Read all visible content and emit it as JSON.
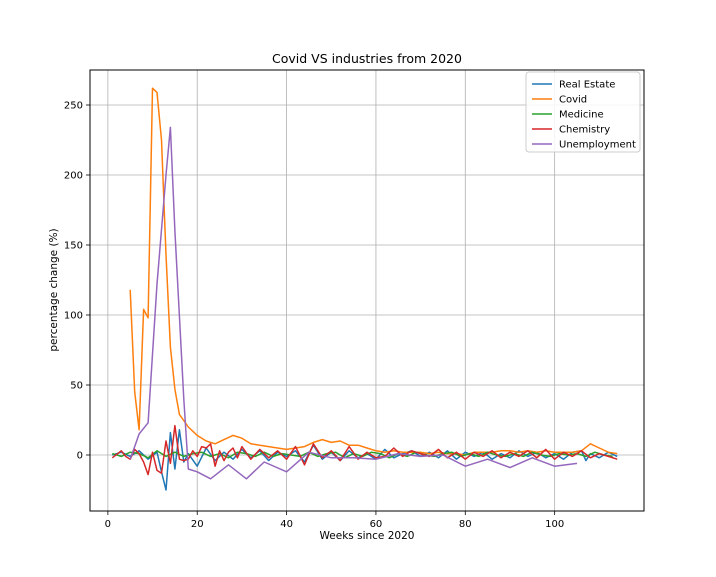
{
  "chart_data": {
    "type": "line",
    "title": "Covid VS industries from 2020",
    "xlabel": "Weeks since 2020",
    "ylabel": "percentage change (%)",
    "xlim": [
      -4,
      120
    ],
    "ylim": [
      -40,
      275
    ],
    "xticks": [
      0,
      20,
      40,
      60,
      80,
      100
    ],
    "yticks": [
      0,
      50,
      100,
      150,
      200,
      250
    ],
    "grid": true,
    "legend_position": "top-right",
    "series": [
      {
        "name": "Real Estate",
        "color": "#1f77b4",
        "x": [
          1,
          3,
          5,
          7,
          9,
          11,
          12,
          13,
          14,
          15,
          16,
          17,
          18,
          20,
          22,
          24,
          26,
          28,
          30,
          32,
          34,
          36,
          38,
          40,
          42,
          44,
          46,
          48,
          50,
          52,
          54,
          56,
          58,
          60,
          62,
          64,
          66,
          68,
          70,
          72,
          74,
          76,
          78,
          80,
          82,
          84,
          86,
          88,
          90,
          92,
          94,
          96,
          98,
          100,
          102,
          104,
          106,
          107,
          108,
          110,
          112,
          114
        ],
        "y": [
          0,
          2,
          -1,
          3,
          -3,
          2,
          -12,
          -25,
          16,
          -10,
          18,
          -5,
          1,
          -8,
          5,
          -4,
          2,
          -3,
          4,
          -2,
          3,
          -4,
          2,
          -1,
          3,
          -5,
          7,
          -3,
          2,
          -4,
          3,
          -2,
          1,
          -3,
          4,
          -2,
          1,
          3,
          -1,
          2,
          -2,
          3,
          -3,
          2,
          -1,
          2,
          -3,
          1,
          -2,
          3,
          -1,
          2,
          -2,
          1,
          -3,
          2,
          3,
          -4,
          1,
          -2,
          2,
          -1
        ]
      },
      {
        "name": "Covid",
        "color": "#ff7f0e",
        "x": [
          5,
          6,
          7,
          8,
          9,
          10,
          11,
          12,
          13,
          14,
          15,
          16,
          18,
          20,
          22,
          24,
          26,
          28,
          30,
          32,
          34,
          36,
          38,
          40,
          42,
          44,
          46,
          48,
          50,
          52,
          54,
          56,
          58,
          60,
          62,
          64,
          66,
          68,
          70,
          72,
          74,
          76,
          78,
          80,
          82,
          84,
          86,
          88,
          90,
          92,
          94,
          96,
          98,
          100,
          102,
          104,
          106,
          108,
          110,
          112,
          114
        ],
        "y": [
          118,
          45,
          18,
          104,
          98,
          262,
          259,
          225,
          143,
          77,
          47,
          29,
          20,
          14,
          10,
          8,
          11,
          14,
          12,
          8,
          7,
          6,
          5,
          4,
          5,
          6,
          9,
          11,
          9,
          10,
          7,
          7,
          5,
          3,
          2,
          3,
          2,
          2,
          2,
          1,
          2,
          1,
          1,
          0,
          2,
          2,
          2,
          3,
          3,
          2,
          3,
          2,
          3,
          2,
          2,
          2,
          3,
          8,
          5,
          2,
          1
        ]
      },
      {
        "name": "Medicine",
        "color": "#2ca02c",
        "x": [
          1,
          3,
          5,
          7,
          9,
          11,
          13,
          15,
          17,
          19,
          21,
          23,
          25,
          27,
          29,
          31,
          33,
          35,
          37,
          39,
          41,
          43,
          45,
          47,
          49,
          51,
          53,
          55,
          57,
          59,
          61,
          63,
          65,
          67,
          69,
          71,
          73,
          75,
          77,
          79,
          81,
          83,
          85,
          87,
          89,
          91,
          93,
          95,
          97,
          99,
          101,
          103,
          105,
          107,
          109,
          111,
          113
        ],
        "y": [
          1,
          -1,
          2,
          1,
          -2,
          3,
          -1,
          2,
          -1,
          1,
          2,
          -1,
          1,
          -2,
          2,
          1,
          -1,
          2,
          -1,
          1,
          0,
          -1,
          2,
          -1,
          1,
          2,
          -2,
          1,
          -1,
          2,
          1,
          -2,
          1,
          -1,
          2,
          0,
          -1,
          1,
          2,
          -1,
          1,
          -1,
          2,
          0,
          -1,
          1,
          -1,
          2,
          0,
          -1,
          1,
          0,
          1,
          -1,
          2,
          0,
          -1
        ]
      },
      {
        "name": "Chemistry",
        "color": "#d62728",
        "x": [
          1,
          3,
          4,
          5,
          6,
          7,
          8,
          9,
          10,
          11,
          12,
          13,
          14,
          15,
          16,
          17,
          18,
          19,
          20,
          21,
          22,
          23,
          24,
          25,
          26,
          27,
          28,
          29,
          30,
          32,
          34,
          36,
          38,
          40,
          42,
          44,
          46,
          48,
          50,
          52,
          54,
          56,
          58,
          60,
          62,
          64,
          66,
          68,
          70,
          72,
          74,
          76,
          78,
          80,
          82,
          84,
          86,
          88,
          90,
          92,
          94,
          96,
          98,
          100,
          102,
          104,
          106,
          108,
          110,
          112,
          114
        ],
        "y": [
          -2,
          3,
          -1,
          -3,
          4,
          1,
          -5,
          -14,
          2,
          -11,
          -13,
          10,
          -6,
          21,
          -3,
          -4,
          -3,
          3,
          -1,
          6,
          5,
          8,
          -8,
          3,
          -4,
          2,
          5,
          -2,
          6,
          -3,
          4,
          -2,
          3,
          -3,
          6,
          -7,
          8,
          -2,
          3,
          -4,
          6,
          -3,
          2,
          -2,
          -1,
          5,
          -1,
          3,
          1,
          -1,
          4,
          -2,
          2,
          -3,
          2,
          -1,
          3,
          -2,
          2,
          -1,
          3,
          -2,
          4,
          -3,
          2,
          -1,
          3,
          -2,
          1,
          -1,
          -3
        ]
      },
      {
        "name": "Unemployment",
        "color": "#9467bd",
        "x": [
          5,
          7,
          9,
          11,
          13,
          14,
          15,
          17,
          18,
          20,
          23,
          27,
          31,
          35,
          40,
          45,
          50,
          55,
          60,
          65,
          70,
          75,
          80,
          85,
          90,
          95,
          100,
          105
        ],
        "y": [
          -3,
          15,
          23,
          122,
          200,
          234,
          160,
          40,
          -10,
          -12,
          -17,
          -7,
          -17,
          -5,
          -12,
          2,
          -2,
          -2,
          -3,
          1,
          -1,
          0,
          -8,
          -3,
          -9,
          -2,
          -8,
          -6
        ]
      }
    ]
  }
}
